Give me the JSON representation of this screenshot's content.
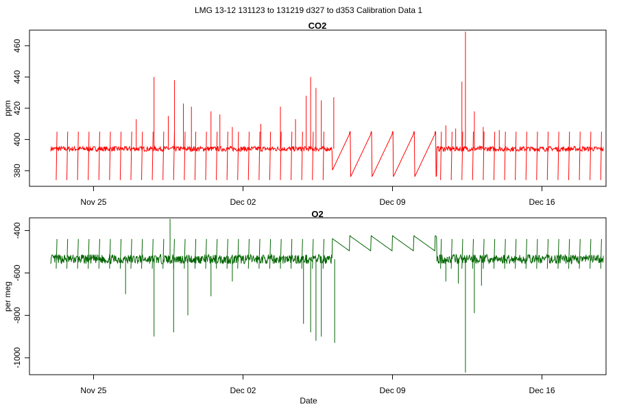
{
  "figure": {
    "title": "LMG   13-12    131123 to 131219    d327 to d353   Calibration Data 1"
  },
  "chart_data": [
    {
      "type": "line",
      "title": "CO2",
      "xlabel": "",
      "ylabel": "ppm",
      "color": "#ff0000",
      "xlim": [
        "2013-11-22",
        "2013-12-19"
      ],
      "ylim": [
        370,
        470
      ],
      "yticks": [
        380,
        400,
        420,
        440,
        460
      ],
      "xticks": [
        {
          "date": "2013-11-25",
          "label": "Nov 25"
        },
        {
          "date": "2013-12-02",
          "label": "Dec 02"
        },
        {
          "date": "2013-12-09",
          "label": "Dec 09"
        },
        {
          "date": "2013-12-16",
          "label": "Dec 16"
        }
      ],
      "series": [
        {
          "range": [
            "2013-11-23",
            "2013-12-18T21:00"
          ],
          "baseline": 394,
          "calibration": {
            "period_hours": 12,
            "low": 374,
            "high": 405
          },
          "gaps": [
            [
              "2013-12-06T04:00",
              "2013-12-11T02:00"
            ]
          ],
          "gap_low": 375,
          "spikes": [
            {
              "date": "2013-11-27T00:00",
              "value": 413
            },
            {
              "date": "2013-11-27T20:00",
              "value": 440
            },
            {
              "date": "2013-11-28T12:00",
              "value": 415
            },
            {
              "date": "2013-11-28T19:00",
              "value": 438
            },
            {
              "date": "2013-11-29T05:00",
              "value": 423
            },
            {
              "date": "2013-11-29T14:00",
              "value": 421
            },
            {
              "date": "2013-11-30T12:00",
              "value": 418
            },
            {
              "date": "2013-11-30T22:00",
              "value": 416
            },
            {
              "date": "2013-12-01T12:00",
              "value": 408
            },
            {
              "date": "2013-12-02T20:00",
              "value": 410
            },
            {
              "date": "2013-12-03T18:00",
              "value": 421
            },
            {
              "date": "2013-12-04T11:00",
              "value": 413
            },
            {
              "date": "2013-12-04T23:00",
              "value": 428
            },
            {
              "date": "2013-12-05T04:00",
              "value": 440
            },
            {
              "date": "2013-12-05T10:00",
              "value": 433
            },
            {
              "date": "2013-12-05T16:00",
              "value": 425
            },
            {
              "date": "2013-12-06T06:00",
              "value": 427
            },
            {
              "date": "2013-12-11T12:00",
              "value": 409
            },
            {
              "date": "2013-12-11T23:00",
              "value": 407
            },
            {
              "date": "2013-12-12T06:00",
              "value": 437
            },
            {
              "date": "2013-12-12T10:00",
              "value": 469
            },
            {
              "date": "2013-12-12T20:00",
              "value": 418
            },
            {
              "date": "2013-12-13T06:00",
              "value": 408
            },
            {
              "date": "2013-12-14T00:00",
              "value": 406
            }
          ]
        }
      ]
    },
    {
      "type": "line",
      "title": "O2",
      "xlabel": "Date",
      "ylabel": "per meg",
      "color": "#006400",
      "xlim": [
        "2013-11-22",
        "2013-12-19"
      ],
      "ylim": [
        -1080,
        -340
      ],
      "yticks": [
        -1000,
        -800,
        -600,
        -400
      ],
      "xticks": [
        {
          "date": "2013-11-25",
          "label": "Nov 25"
        },
        {
          "date": "2013-12-02",
          "label": "Dec 02"
        },
        {
          "date": "2013-12-09",
          "label": "Dec 09"
        },
        {
          "date": "2013-12-16",
          "label": "Dec 16"
        }
      ],
      "series": [
        {
          "range": [
            "2013-11-23",
            "2013-12-18T21:00"
          ],
          "baseline": -535,
          "calibration": {
            "period_hours": 12,
            "low": -580,
            "high": -440
          },
          "gaps": [
            [
              "2013-12-06T04:00",
              "2013-12-11T02:00"
            ]
          ],
          "gap_high": -425,
          "spikes": [
            {
              "date": "2013-11-26T12:00",
              "value": -700
            },
            {
              "date": "2013-11-27T20:00",
              "value": -900
            },
            {
              "date": "2013-11-28T14:00",
              "value": -345
            },
            {
              "date": "2013-11-28T18:00",
              "value": -880
            },
            {
              "date": "2013-11-29T10:00",
              "value": -800
            },
            {
              "date": "2013-11-30T12:00",
              "value": -710
            },
            {
              "date": "2013-12-01T12:00",
              "value": -640
            },
            {
              "date": "2013-12-04T20:00",
              "value": -840
            },
            {
              "date": "2013-12-05T04:00",
              "value": -880
            },
            {
              "date": "2013-12-05T10:00",
              "value": -920
            },
            {
              "date": "2013-12-05T16:00",
              "value": -900
            },
            {
              "date": "2013-12-06T07:00",
              "value": -930
            },
            {
              "date": "2013-12-11T12:00",
              "value": -640
            },
            {
              "date": "2013-12-12T02:00",
              "value": -650
            },
            {
              "date": "2013-12-12T10:00",
              "value": -1070
            },
            {
              "date": "2013-12-12T20:00",
              "value": -790
            },
            {
              "date": "2013-12-13T04:00",
              "value": -660
            }
          ]
        }
      ]
    }
  ]
}
